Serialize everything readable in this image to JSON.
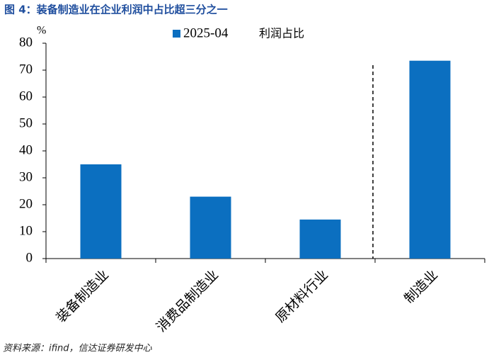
{
  "chart_data": {
    "type": "bar",
    "title": "图 4：装备制造业在企业利润中占比超三分之一",
    "y_unit": "%",
    "categories": [
      "装备制造业",
      "消费品制造业",
      "原材料行业",
      "制造业"
    ],
    "series": [
      {
        "name": "2025-04",
        "color": "#0b6fc0",
        "values": [
          35,
          23,
          14.5,
          73.5
        ]
      }
    ],
    "legend_note": "利润占比",
    "ylim": [
      0,
      80
    ],
    "yticks": [
      0,
      10,
      20,
      30,
      40,
      50,
      60,
      70,
      80
    ],
    "source": "资料来源：ifind，信达证券研发中心"
  }
}
